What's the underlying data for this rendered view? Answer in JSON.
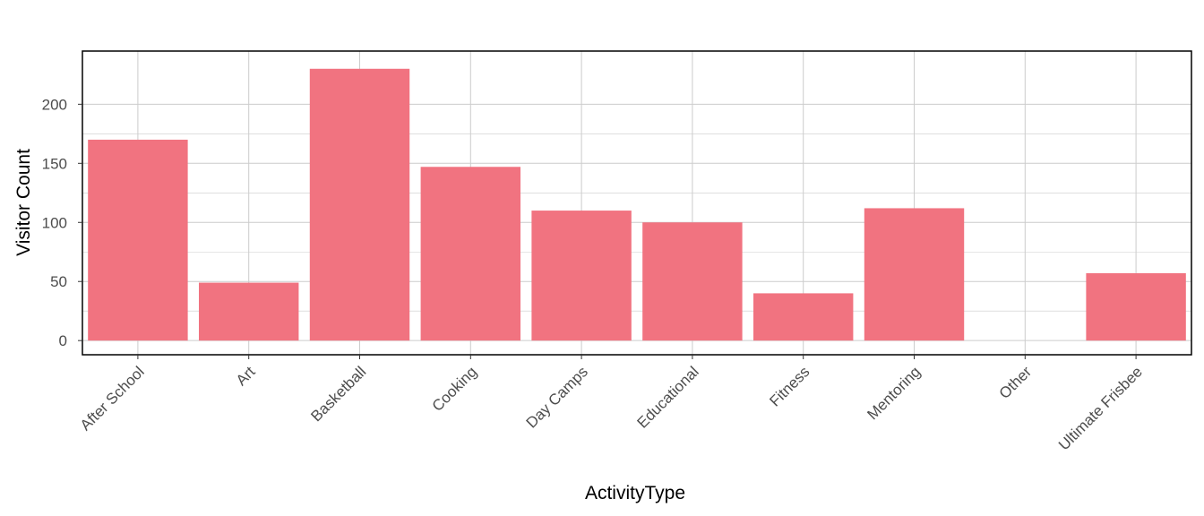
{
  "colors": {
    "bar": "#F17380",
    "grid": "#cccccc",
    "frame": "#000000",
    "tick_text": "#4d4d4d",
    "background": "#ffffff"
  },
  "chart_data": {
    "type": "bar",
    "categories": [
      "After School",
      "Art",
      "Basketball",
      "Cooking",
      "Day Camps",
      "Educational",
      "Fitness",
      "Mentoring",
      "Other",
      "Ultimate Frisbee"
    ],
    "values": [
      170,
      49,
      230,
      147,
      110,
      100,
      40,
      112,
      0,
      57
    ],
    "xlabel": "ActivityType",
    "ylabel": "Visitor Count",
    "ylim": [
      -12,
      245
    ],
    "yticks": [
      0,
      50,
      100,
      150,
      200
    ],
    "grid": true,
    "legend": "none"
  }
}
